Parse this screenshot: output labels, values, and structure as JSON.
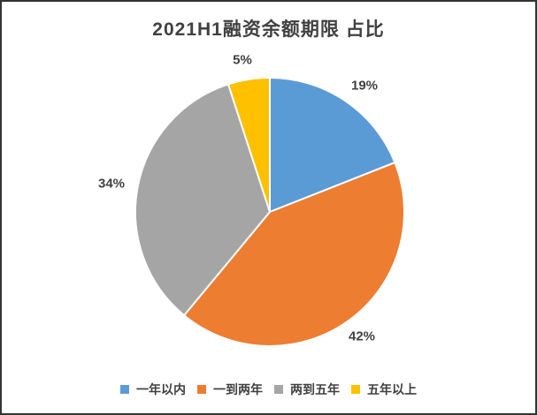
{
  "chart_data": {
    "type": "pie",
    "title": "2021H1融资余额期限 占比",
    "categories": [
      "一年以内",
      "一到两年",
      "两到五年",
      "五年以上"
    ],
    "values": [
      19,
      42,
      34,
      5
    ],
    "labels": [
      "19%",
      "42%",
      "34%",
      "5%"
    ],
    "colors": [
      "#5B9BD5",
      "#ED7D31",
      "#A5A5A5",
      "#FFC000"
    ],
    "unit": "%",
    "start_angle_deg": 0,
    "direction": "clockwise",
    "legend_position": "bottom",
    "separator_color": "#FFFFFF",
    "title_color": "#404040",
    "label_color": "#404040"
  }
}
